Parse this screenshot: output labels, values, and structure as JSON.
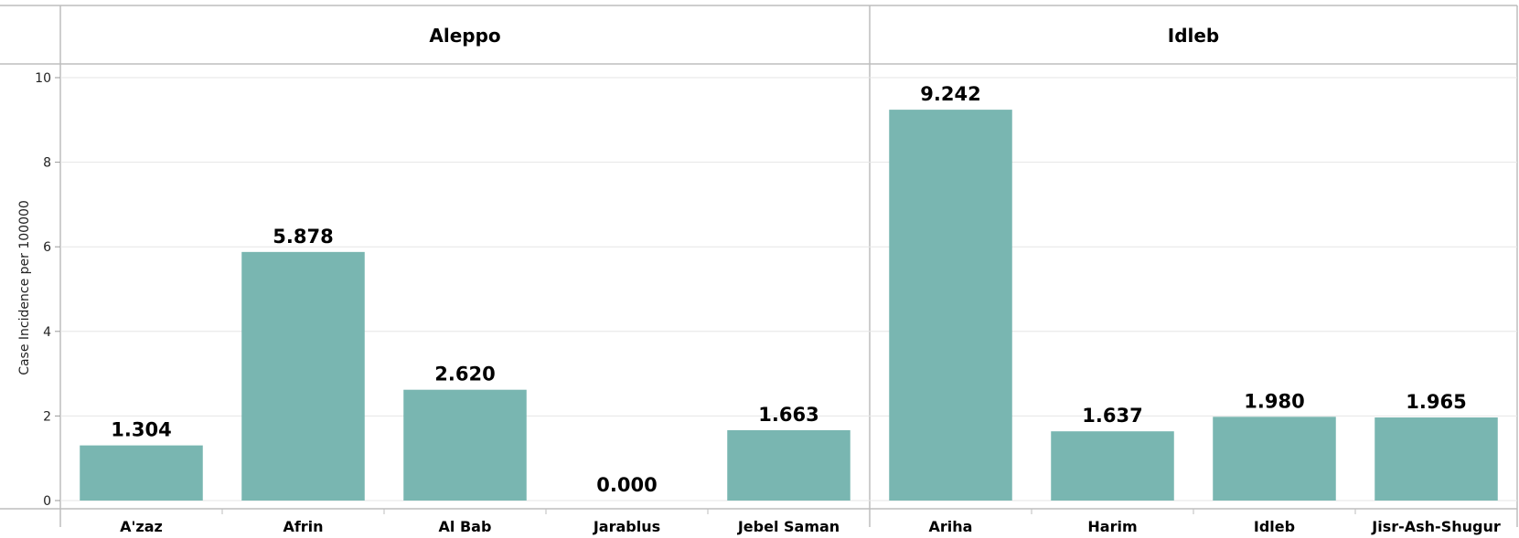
{
  "chart_data": {
    "type": "bar",
    "ylabel": "Case Incidence per 100000",
    "ylim": [
      0,
      10
    ],
    "yticks": [
      0,
      2,
      4,
      6,
      8,
      10
    ],
    "grid": true,
    "bar_color": "#79b6b1",
    "panels": [
      {
        "name": "Aleppo",
        "categories": [
          "A'zaz",
          "Afrin",
          "Al Bab",
          "Jarablus",
          "Jebel Saman"
        ],
        "values": [
          1.304,
          5.878,
          2.62,
          0.0,
          1.663
        ],
        "labels": [
          "1.304",
          "5.878",
          "2.620",
          "0.000",
          "1.663"
        ]
      },
      {
        "name": "Idleb",
        "categories": [
          "Ariha",
          "Harim",
          "Idleb",
          "Jisr-Ash-Shugur"
        ],
        "values": [
          9.242,
          1.637,
          1.98,
          1.965
        ],
        "labels": [
          "9.242",
          "1.637",
          "1.980",
          "1.965"
        ]
      }
    ]
  }
}
